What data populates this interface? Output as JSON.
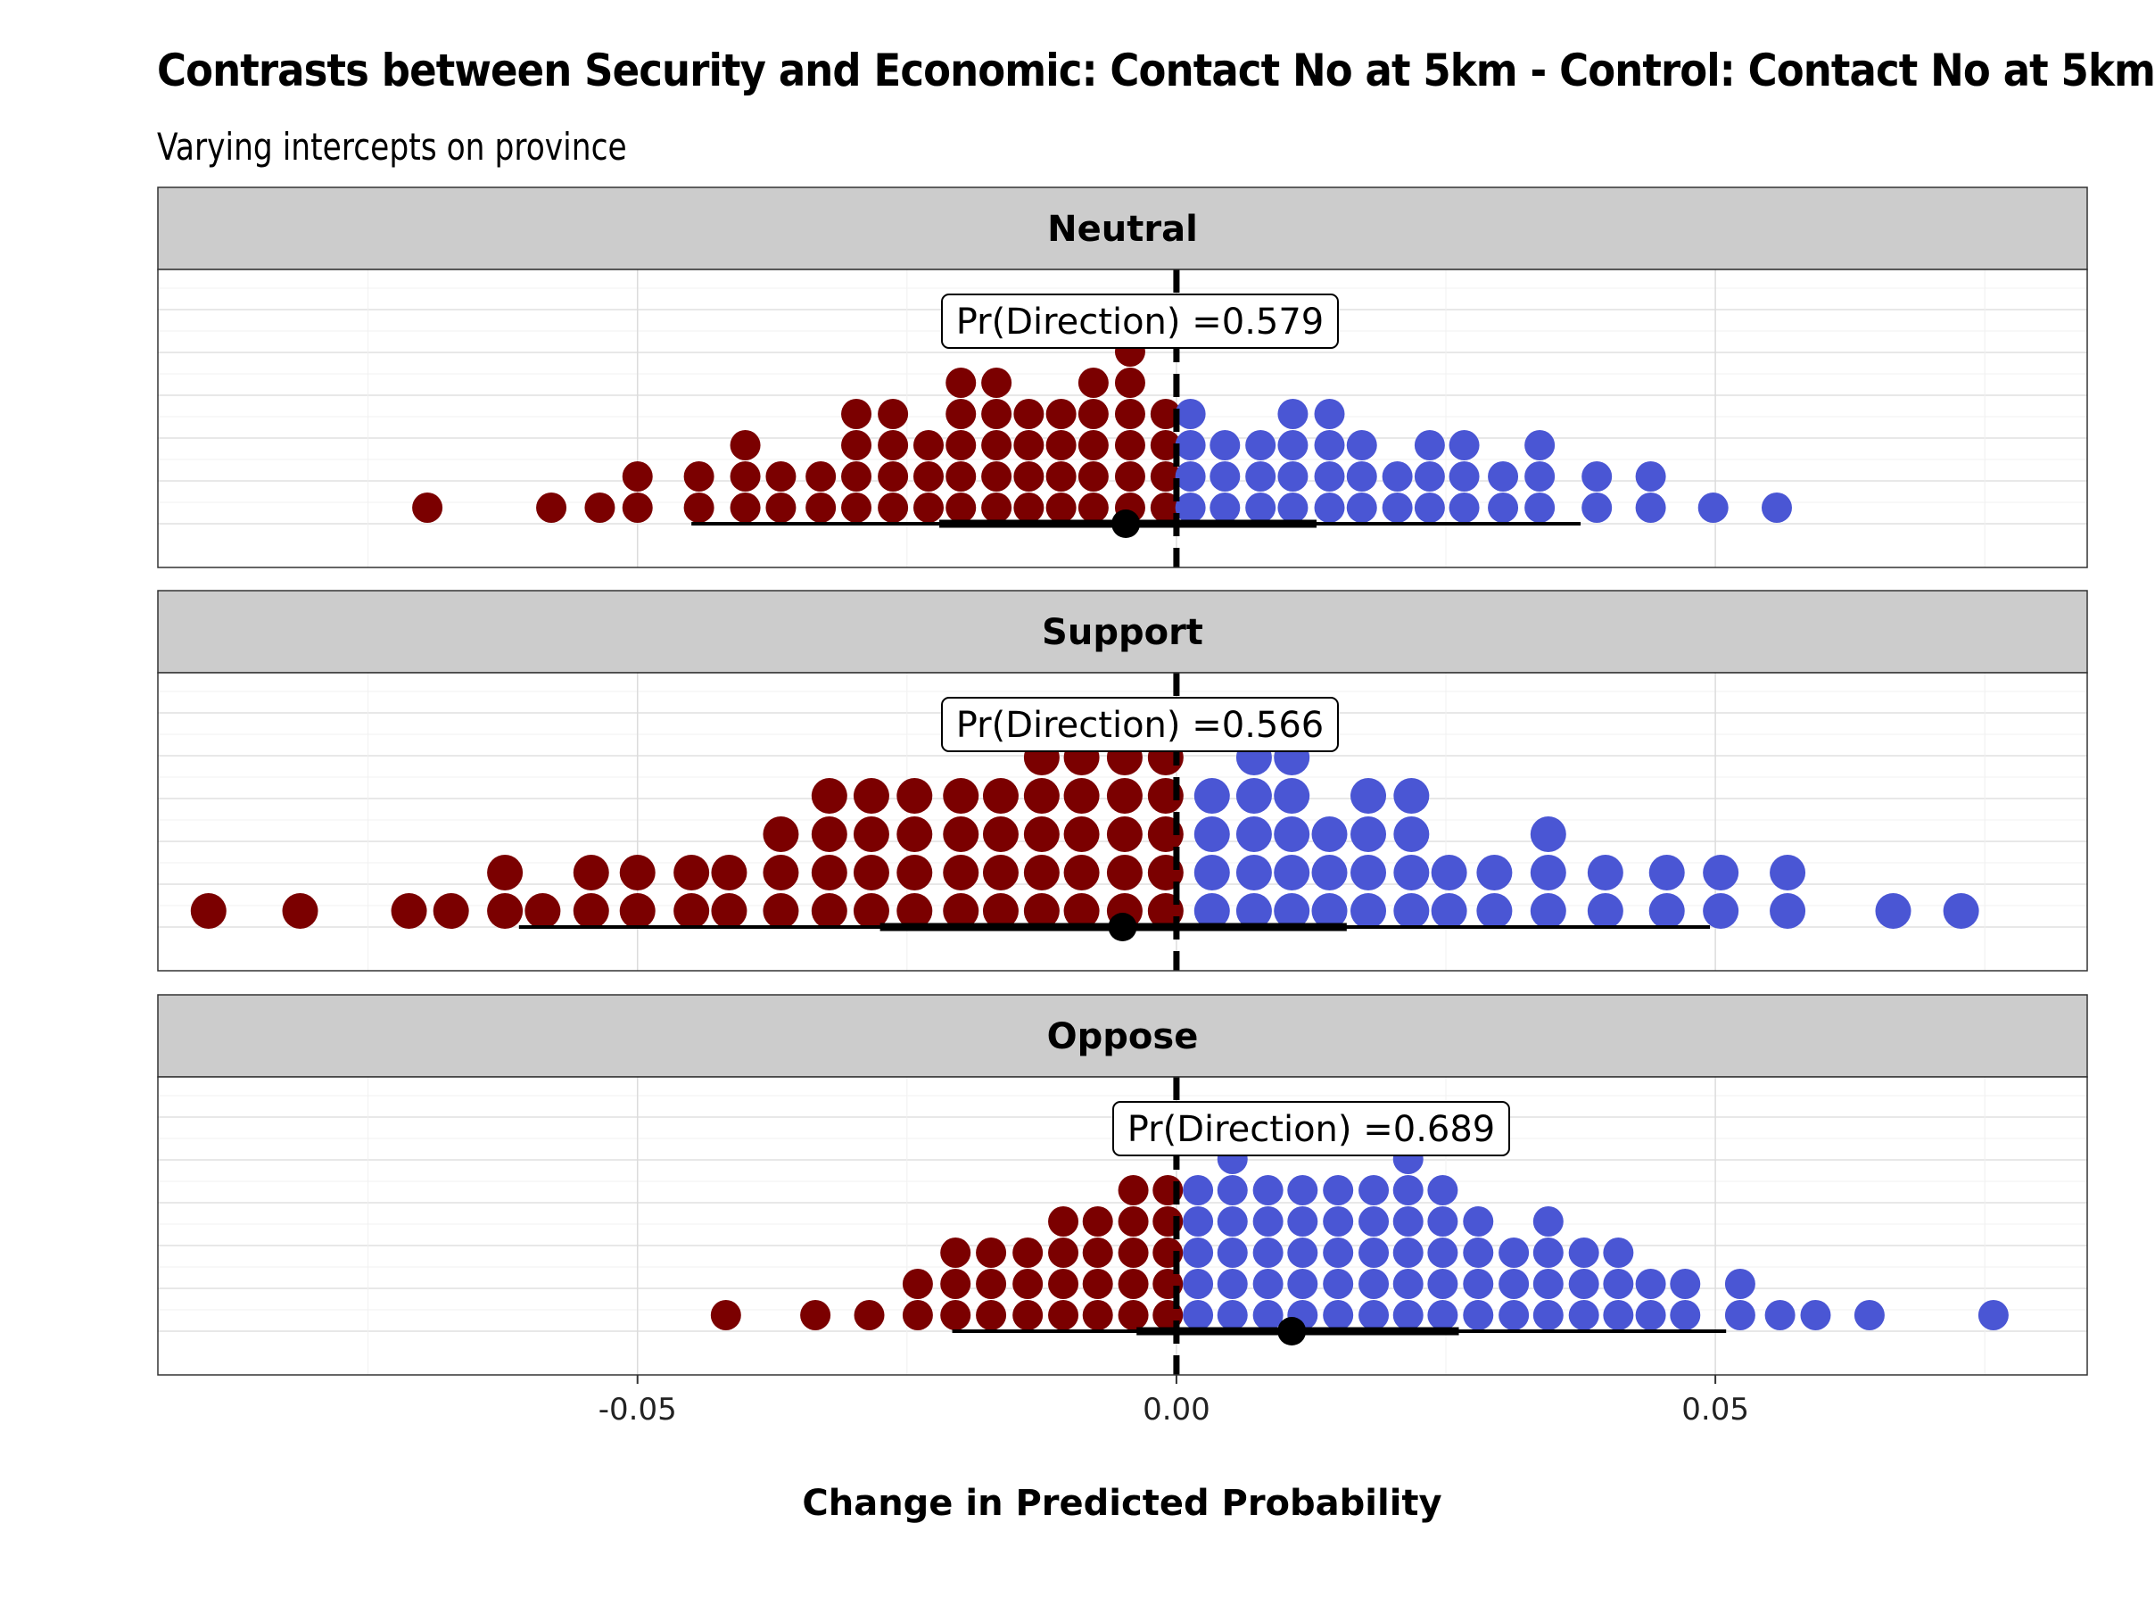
{
  "chart_data": {
    "type": "dotplot",
    "title": "Contrasts between Security and Economic: Contact No at 5km - Control: Contact No at 5km",
    "subtitle": "Varying intercepts on province",
    "xlabel": "Change in Predicted Probability",
    "xlim": [
      -0.0945,
      0.0845
    ],
    "x_ticks": [
      -0.05,
      0.0,
      0.05
    ],
    "x_tick_labels": [
      "-0.05",
      "0.00",
      "0.05"
    ],
    "colors": {
      "negative": "#7b0000",
      "positive": "#4a56d4",
      "panel_strip": "#cccccc"
    },
    "panels": [
      {
        "name": "Neutral",
        "annotation": "Pr(Direction) =0.579",
        "point": -0.0047,
        "interval_inner": [
          -0.022,
          0.013
        ],
        "interval_outer": [
          -0.045,
          0.0375
        ],
        "dots": [
          {
            "x": -0.0695,
            "n": 1
          },
          {
            "x": -0.058,
            "n": 1
          },
          {
            "x": -0.0535,
            "n": 1
          },
          {
            "x": -0.05,
            "n": 2
          },
          {
            "x": -0.0443,
            "n": 2
          },
          {
            "x": -0.04,
            "n": 3
          },
          {
            "x": -0.0367,
            "n": 2
          },
          {
            "x": -0.033,
            "n": 2
          },
          {
            "x": -0.0297,
            "n": 4
          },
          {
            "x": -0.0263,
            "n": 4
          },
          {
            "x": -0.023,
            "n": 3
          },
          {
            "x": -0.02,
            "n": 5
          },
          {
            "x": -0.0167,
            "n": 5
          },
          {
            "x": -0.0137,
            "n": 4
          },
          {
            "x": -0.0107,
            "n": 4
          },
          {
            "x": -0.0077,
            "n": 5
          },
          {
            "x": -0.0043,
            "n": 6
          },
          {
            "x": -0.001,
            "n": 4
          },
          {
            "x": 0.0013,
            "n": 4
          },
          {
            "x": 0.0045,
            "n": 3
          },
          {
            "x": 0.0078,
            "n": 3
          },
          {
            "x": 0.0108,
            "n": 4
          },
          {
            "x": 0.0142,
            "n": 4
          },
          {
            "x": 0.0172,
            "n": 3
          },
          {
            "x": 0.0205,
            "n": 2
          },
          {
            "x": 0.0235,
            "n": 3
          },
          {
            "x": 0.0267,
            "n": 3
          },
          {
            "x": 0.0303,
            "n": 2
          },
          {
            "x": 0.0337,
            "n": 3
          },
          {
            "x": 0.039,
            "n": 2
          },
          {
            "x": 0.044,
            "n": 2
          },
          {
            "x": 0.0498,
            "n": 1
          },
          {
            "x": 0.0557,
            "n": 1
          }
        ]
      },
      {
        "name": "Support",
        "annotation": "Pr(Direction) =0.566",
        "point": -0.005,
        "interval_inner": [
          -0.0275,
          0.0158
        ],
        "interval_outer": [
          -0.061,
          0.0495
        ],
        "dots": [
          {
            "x": -0.0898,
            "n": 1
          },
          {
            "x": -0.0813,
            "n": 1
          },
          {
            "x": -0.0712,
            "n": 1
          },
          {
            "x": -0.0673,
            "n": 1
          },
          {
            "x": -0.0623,
            "n": 2
          },
          {
            "x": -0.0588,
            "n": 1
          },
          {
            "x": -0.0543,
            "n": 2
          },
          {
            "x": -0.05,
            "n": 2
          },
          {
            "x": -0.045,
            "n": 2
          },
          {
            "x": -0.0415,
            "n": 2
          },
          {
            "x": -0.0367,
            "n": 3
          },
          {
            "x": -0.0322,
            "n": 4
          },
          {
            "x": -0.0283,
            "n": 4
          },
          {
            "x": -0.0243,
            "n": 4
          },
          {
            "x": -0.02,
            "n": 4
          },
          {
            "x": -0.0163,
            "n": 4
          },
          {
            "x": -0.0125,
            "n": 5
          },
          {
            "x": -0.0088,
            "n": 5
          },
          {
            "x": -0.0048,
            "n": 5
          },
          {
            "x": -0.001,
            "n": 5
          },
          {
            "x": 0.0033,
            "n": 4
          },
          {
            "x": 0.0072,
            "n": 5
          },
          {
            "x": 0.0107,
            "n": 5
          },
          {
            "x": 0.0142,
            "n": 3
          },
          {
            "x": 0.0178,
            "n": 4
          },
          {
            "x": 0.0218,
            "n": 4
          },
          {
            "x": 0.0253,
            "n": 2
          },
          {
            "x": 0.0295,
            "n": 2
          },
          {
            "x": 0.0345,
            "n": 3
          },
          {
            "x": 0.0398,
            "n": 2
          },
          {
            "x": 0.0455,
            "n": 2
          },
          {
            "x": 0.0505,
            "n": 2
          },
          {
            "x": 0.0567,
            "n": 2
          },
          {
            "x": 0.0665,
            "n": 1
          },
          {
            "x": 0.0728,
            "n": 1
          }
        ]
      },
      {
        "name": "Oppose",
        "annotation": "Pr(Direction) =0.689",
        "point": 0.0107,
        "interval_inner": [
          -0.0037,
          0.0262
        ],
        "interval_outer": [
          -0.0208,
          0.051
        ],
        "dots": [
          {
            "x": -0.0418,
            "n": 1
          },
          {
            "x": -0.0335,
            "n": 1
          },
          {
            "x": -0.0285,
            "n": 1
          },
          {
            "x": -0.024,
            "n": 2
          },
          {
            "x": -0.0205,
            "n": 3
          },
          {
            "x": -0.0172,
            "n": 3
          },
          {
            "x": -0.0138,
            "n": 3
          },
          {
            "x": -0.0105,
            "n": 4
          },
          {
            "x": -0.0073,
            "n": 4
          },
          {
            "x": -0.004,
            "n": 5
          },
          {
            "x": -0.0008,
            "n": 5
          },
          {
            "x": 0.002,
            "n": 5
          },
          {
            "x": 0.0052,
            "n": 6
          },
          {
            "x": 0.0085,
            "n": 5
          },
          {
            "x": 0.0117,
            "n": 5
          },
          {
            "x": 0.015,
            "n": 5
          },
          {
            "x": 0.0183,
            "n": 5
          },
          {
            "x": 0.0215,
            "n": 6
          },
          {
            "x": 0.0247,
            "n": 5
          },
          {
            "x": 0.028,
            "n": 4
          },
          {
            "x": 0.0313,
            "n": 3
          },
          {
            "x": 0.0345,
            "n": 4
          },
          {
            "x": 0.0378,
            "n": 3
          },
          {
            "x": 0.041,
            "n": 3
          },
          {
            "x": 0.044,
            "n": 2
          },
          {
            "x": 0.0472,
            "n": 2
          },
          {
            "x": 0.0523,
            "n": 2
          },
          {
            "x": 0.056,
            "n": 1
          },
          {
            "x": 0.0593,
            "n": 1
          },
          {
            "x": 0.0643,
            "n": 1
          },
          {
            "x": 0.0758,
            "n": 1
          }
        ]
      }
    ]
  }
}
